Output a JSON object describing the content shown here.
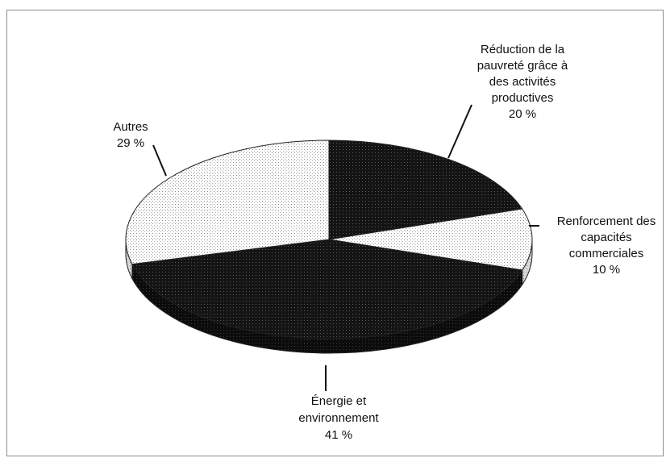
{
  "chart_data": {
    "type": "pie",
    "title": "",
    "style": "3d",
    "colors": {
      "dark": "#111111",
      "light": "#ffffff",
      "edge": "#222222",
      "leader": "#111111"
    },
    "slices": [
      {
        "label_lines": [
          "Réduction de la",
          "pauvreté grâce à",
          "des activités",
          "productives"
        ],
        "pct_text": "20 %",
        "value": 20,
        "fill": "dark"
      },
      {
        "label_lines": [
          "Renforcement des",
          "capacités",
          "commerciales"
        ],
        "pct_text": "10 %",
        "value": 10,
        "fill": "light"
      },
      {
        "label_lines": [
          "Énergie et",
          "environnement"
        ],
        "pct_text": "41 %",
        "value": 41,
        "fill": "dark"
      },
      {
        "label_lines": [
          "Autres"
        ],
        "pct_text": "29 %",
        "value": 29,
        "fill": "light"
      }
    ]
  }
}
